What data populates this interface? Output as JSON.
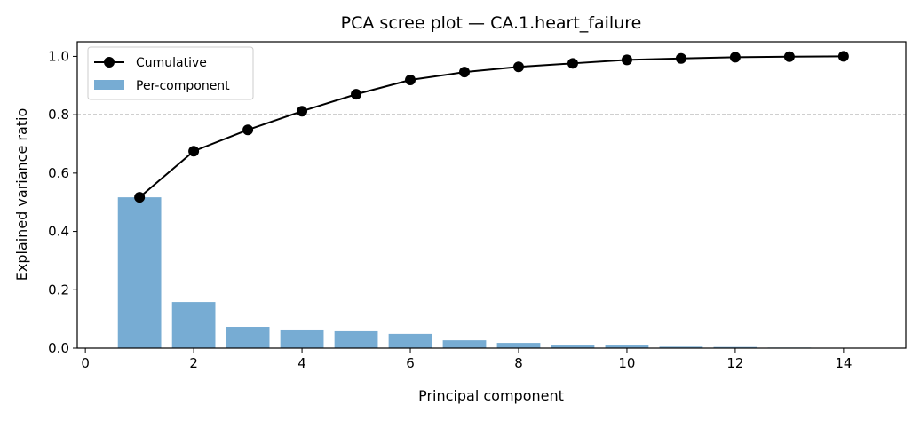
{
  "chart_data": {
    "type": "bar+line",
    "title": "PCA scree plot — CA.1.heart_failure",
    "xlabel": "Principal component",
    "ylabel": "Explained variance ratio",
    "xlim": [
      -0.15,
      15.15
    ],
    "ylim": [
      0,
      1.05
    ],
    "xticks": [
      0,
      2,
      4,
      6,
      8,
      10,
      12,
      14
    ],
    "yticks": [
      0.0,
      0.2,
      0.4,
      0.6,
      0.8,
      1.0
    ],
    "x": [
      1,
      2,
      3,
      4,
      5,
      6,
      7,
      8,
      9,
      10,
      11,
      12,
      13,
      14
    ],
    "series": [
      {
        "name": "Cumulative",
        "type": "line",
        "color": "#000000",
        "values": [
          0.517,
          0.675,
          0.748,
          0.812,
          0.87,
          0.919,
          0.946,
          0.964,
          0.976,
          0.988,
          0.993,
          0.997,
          0.999,
          1.0
        ]
      },
      {
        "name": "Per-component",
        "type": "bar",
        "color": "#77acd3",
        "values": [
          0.517,
          0.158,
          0.073,
          0.064,
          0.058,
          0.049,
          0.027,
          0.018,
          0.012,
          0.012,
          0.005,
          0.004,
          0.002,
          0.001
        ]
      }
    ],
    "threshold": {
      "y": 0.8,
      "style": "dashed",
      "color": "#808080"
    },
    "legend": "top-left",
    "grid": false
  }
}
